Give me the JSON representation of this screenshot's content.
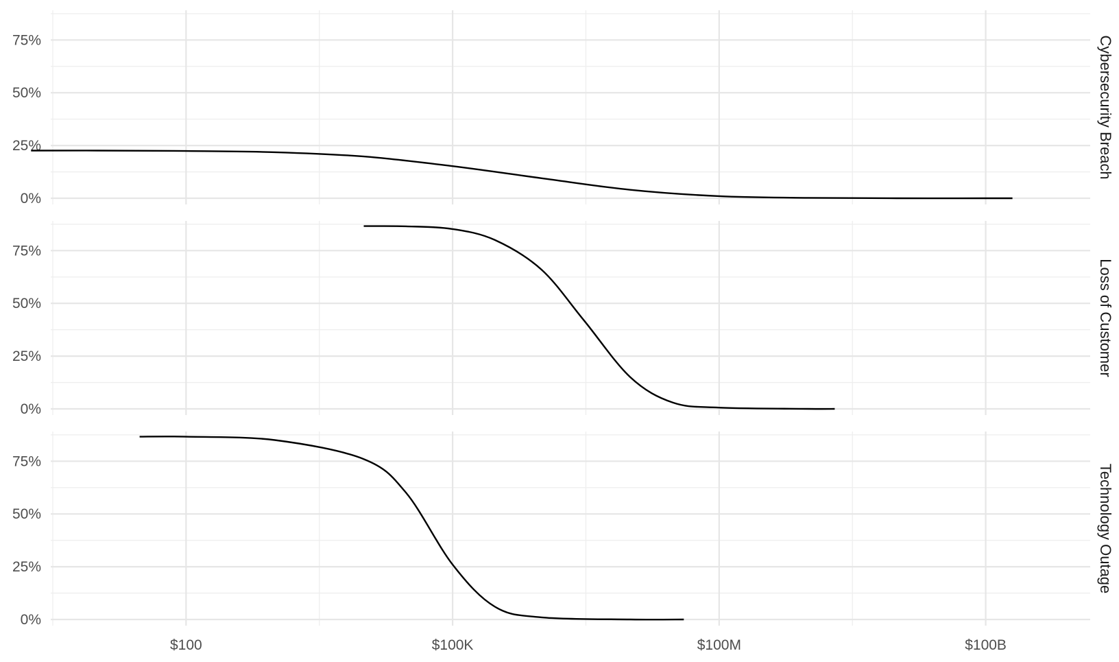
{
  "chart_data": {
    "type": "line",
    "facet_direction": "vertical",
    "x_scale": "log10",
    "xlim": [
      3,
      1500000000000
    ],
    "x_major_ticks": [
      {
        "value": 100,
        "label": "$100"
      },
      {
        "value": 100000,
        "label": "$100K"
      },
      {
        "value": 100000000,
        "label": "$100M"
      },
      {
        "value": 100000000000,
        "label": "$100B"
      }
    ],
    "x_minor_ticks": [
      3.162,
      3162,
      3162000,
      3162000000
    ],
    "ylim": [
      0,
      0.9
    ],
    "y_major_ticks": [
      {
        "value": 0,
        "label": "0%"
      },
      {
        "value": 0.25,
        "label": "25%"
      },
      {
        "value": 0.5,
        "label": "50%"
      },
      {
        "value": 0.75,
        "label": "75%"
      }
    ],
    "y_minor_ticks": [
      0.125,
      0.375,
      0.625,
      0.875
    ],
    "grid": true,
    "legend": "none",
    "line_color": "#000000",
    "panels": [
      {
        "strip_label": "Cybersecurity Breach",
        "x": [
          1.8,
          10,
          100,
          1000,
          10000,
          100000,
          1000000,
          10000000,
          100000000,
          1000000000,
          10000000000,
          100000000000,
          200000000000
        ],
        "y": [
          0.226,
          0.226,
          0.224,
          0.218,
          0.198,
          0.152,
          0.095,
          0.04,
          0.01,
          0.002,
          0.0,
          0.0,
          0.0
        ]
      },
      {
        "strip_label": "Loss of Customer",
        "x": [
          10000,
          30000,
          100000,
          300000,
          1000000,
          3000000,
          10000000,
          30000000,
          100000000,
          1000000000,
          2000000000
        ],
        "y": [
          0.866,
          0.865,
          0.852,
          0.8,
          0.66,
          0.42,
          0.15,
          0.03,
          0.006,
          0.0,
          0.0
        ]
      },
      {
        "strip_label": "Technology Outage",
        "x": [
          30,
          100,
          1000,
          10000,
          30000,
          100000,
          300000,
          1000000,
          10000000,
          40000000
        ],
        "y": [
          0.866,
          0.866,
          0.85,
          0.76,
          0.6,
          0.26,
          0.06,
          0.01,
          0.0,
          0.0
        ]
      }
    ]
  }
}
